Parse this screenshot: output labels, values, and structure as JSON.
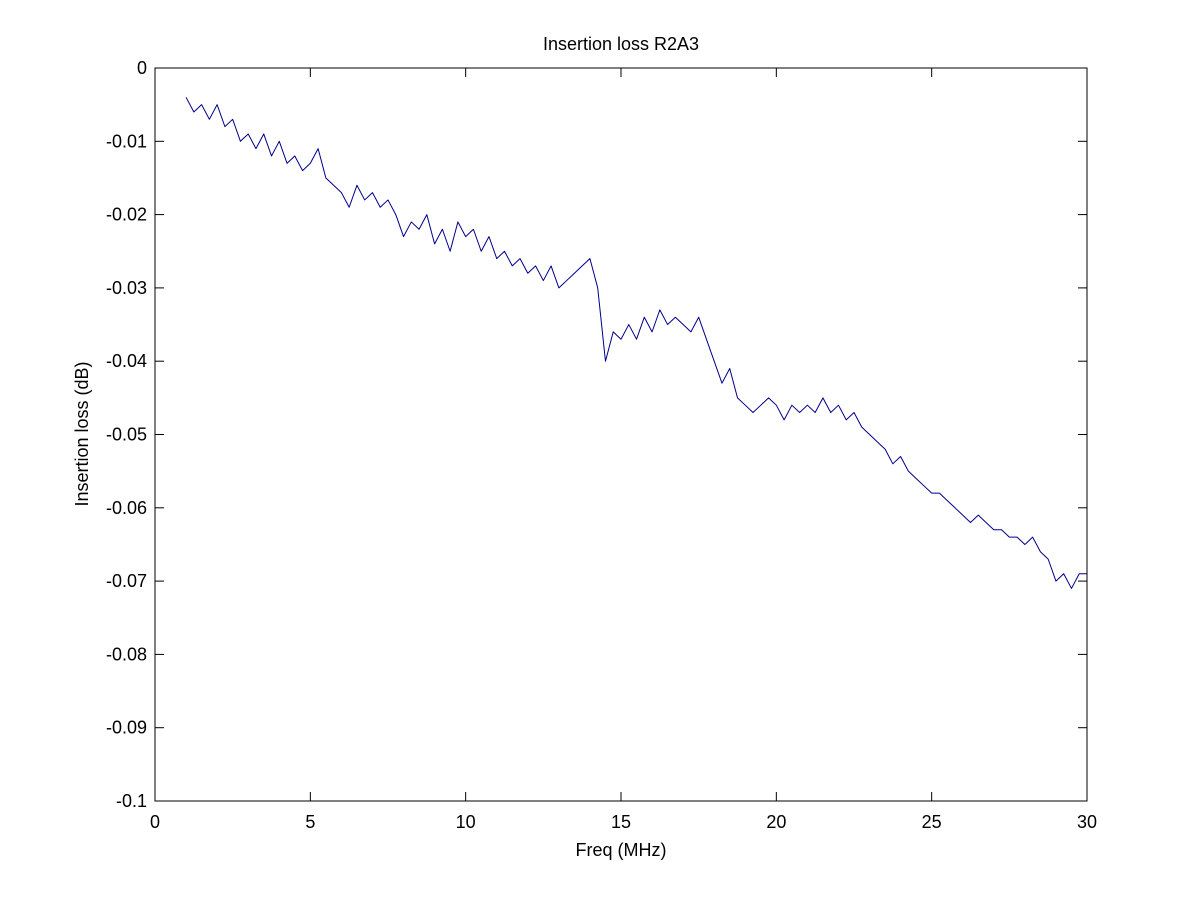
{
  "chart_data": {
    "type": "line",
    "title": "Insertion loss R2A3",
    "xlabel": "Freq (MHz)",
    "ylabel": "Insertion loss (dB)",
    "xlim": [
      0,
      30
    ],
    "ylim": [
      -0.1,
      0
    ],
    "xticks": [
      0,
      5,
      10,
      15,
      20,
      25,
      30
    ],
    "yticks": [
      0,
      -0.01,
      -0.02,
      -0.03,
      -0.04,
      -0.05,
      -0.06,
      -0.07,
      -0.08,
      -0.09,
      -0.1
    ],
    "grid": false,
    "x": [
      1,
      1.25,
      1.5,
      1.75,
      2,
      2.25,
      2.5,
      2.75,
      3,
      3.25,
      3.5,
      3.75,
      4,
      4.25,
      4.5,
      4.75,
      5,
      5.25,
      5.5,
      5.75,
      6,
      6.25,
      6.5,
      6.75,
      7,
      7.25,
      7.5,
      7.75,
      8,
      8.25,
      8.5,
      8.75,
      9,
      9.25,
      9.5,
      9.75,
      10,
      10.25,
      10.5,
      10.75,
      11,
      11.25,
      11.5,
      11.75,
      12,
      12.25,
      12.5,
      12.75,
      13,
      13.25,
      13.5,
      13.75,
      14,
      14.25,
      14.5,
      14.75,
      15,
      15.25,
      15.5,
      15.75,
      16,
      16.25,
      16.5,
      16.75,
      17,
      17.25,
      17.5,
      17.75,
      18,
      18.25,
      18.5,
      18.75,
      19,
      19.25,
      19.5,
      19.75,
      20,
      20.25,
      20.5,
      20.75,
      21,
      21.25,
      21.5,
      21.75,
      22,
      22.25,
      22.5,
      22.75,
      23,
      23.25,
      23.5,
      23.75,
      24,
      24.25,
      24.5,
      24.75,
      25,
      25.25,
      25.5,
      25.75,
      26,
      26.25,
      26.5,
      26.75,
      27,
      27.25,
      27.5,
      27.75,
      28,
      28.25,
      28.5,
      28.75,
      29,
      29.25,
      29.5,
      29.75,
      30
    ],
    "series": [
      {
        "color": "#00008b",
        "values": [
          -0.004,
          -0.006,
          -0.005,
          -0.007,
          -0.005,
          -0.008,
          -0.007,
          -0.01,
          -0.009,
          -0.011,
          -0.009,
          -0.012,
          -0.01,
          -0.013,
          -0.012,
          -0.014,
          -0.013,
          -0.011,
          -0.015,
          -0.016,
          -0.017,
          -0.019,
          -0.016,
          -0.018,
          -0.017,
          -0.019,
          -0.018,
          -0.02,
          -0.023,
          -0.021,
          -0.022,
          -0.02,
          -0.024,
          -0.022,
          -0.025,
          -0.021,
          -0.023,
          -0.022,
          -0.025,
          -0.023,
          -0.026,
          -0.025,
          -0.027,
          -0.026,
          -0.028,
          -0.027,
          -0.029,
          -0.027,
          -0.03,
          -0.029,
          -0.028,
          -0.027,
          -0.026,
          -0.03,
          -0.04,
          -0.036,
          -0.037,
          -0.035,
          -0.037,
          -0.034,
          -0.036,
          -0.033,
          -0.035,
          -0.034,
          -0.035,
          -0.036,
          -0.034,
          -0.037,
          -0.04,
          -0.043,
          -0.041,
          -0.045,
          -0.046,
          -0.047,
          -0.046,
          -0.045,
          -0.046,
          -0.048,
          -0.046,
          -0.047,
          -0.046,
          -0.047,
          -0.045,
          -0.047,
          -0.046,
          -0.048,
          -0.047,
          -0.049,
          -0.05,
          -0.051,
          -0.052,
          -0.054,
          -0.053,
          -0.055,
          -0.056,
          -0.057,
          -0.058,
          -0.058,
          -0.059,
          -0.06,
          -0.061,
          -0.062,
          -0.061,
          -0.062,
          -0.063,
          -0.063,
          -0.064,
          -0.064,
          -0.065,
          -0.064,
          -0.066,
          -0.067,
          -0.07,
          -0.069,
          -0.071,
          -0.069,
          -0.069
        ]
      }
    ]
  }
}
